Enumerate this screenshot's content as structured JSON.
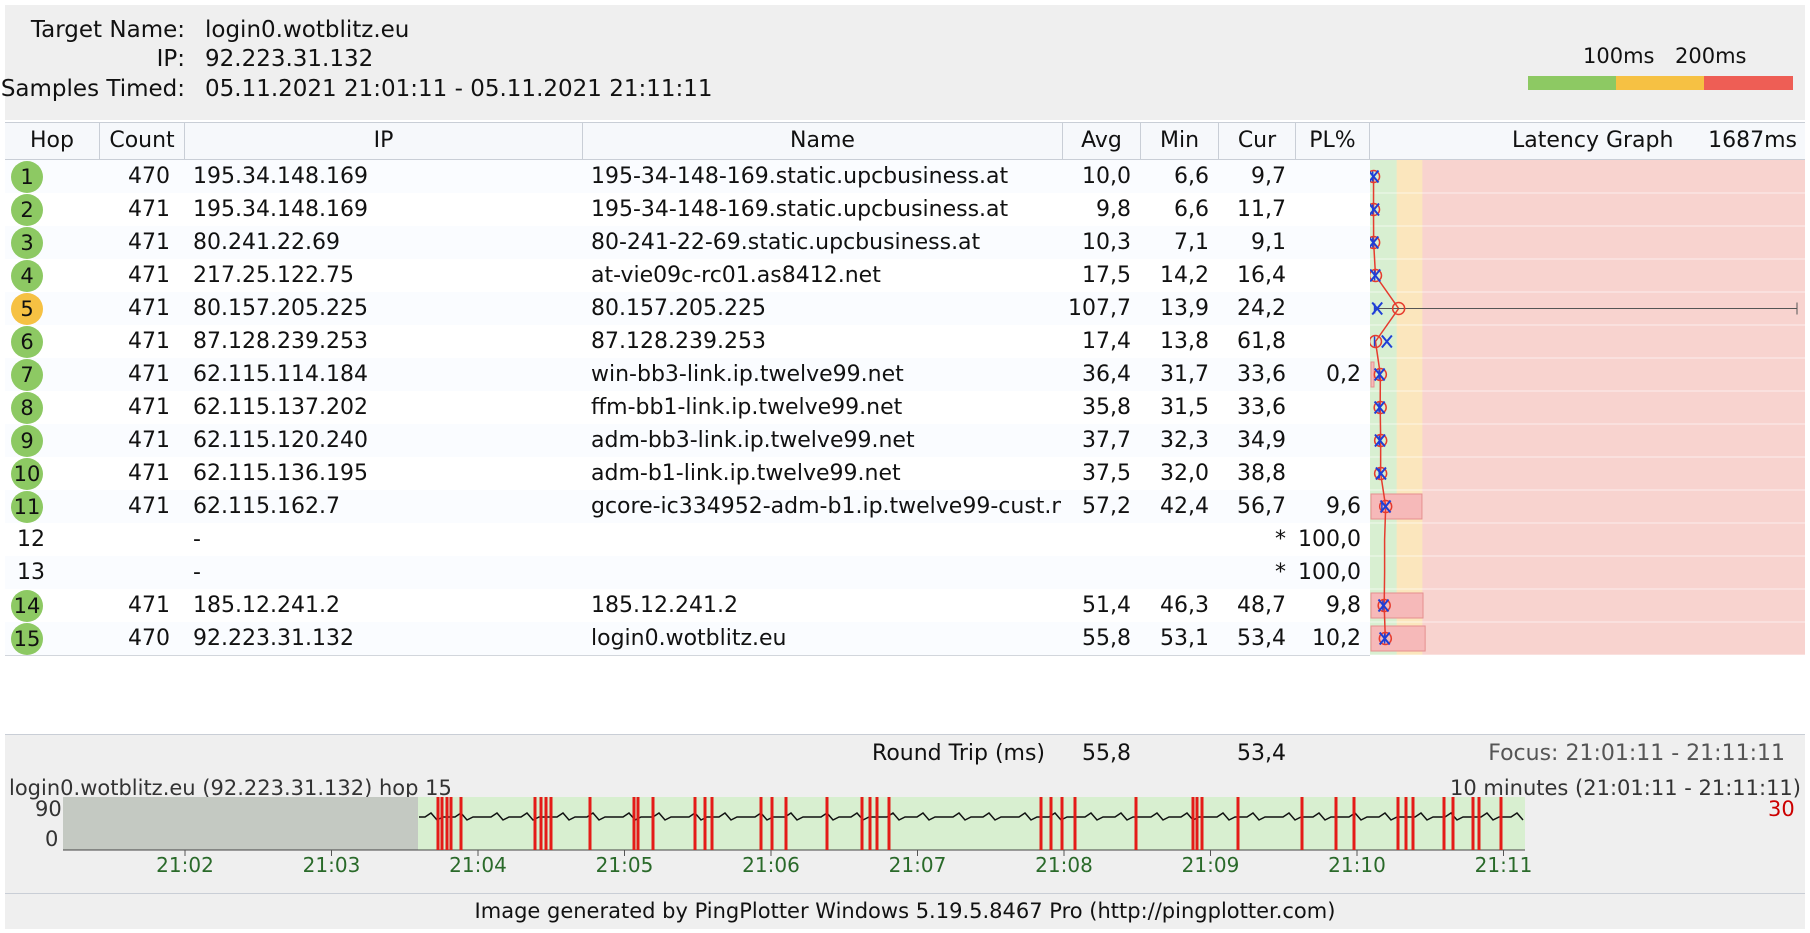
{
  "header": {
    "target_name_label": "Target Name:",
    "target_name": "login0.wotblitz.eu",
    "ip_label": "IP:",
    "ip": "92.223.31.132",
    "samples_label": "Samples Timed:",
    "samples": "05.11.2021 21:01:11 - 05.11.2021 21:11:11"
  },
  "scale": {
    "label_100": "100ms",
    "label_200": "200ms",
    "color_good": "#8dc963",
    "color_warn": "#f6c143",
    "color_bad": "#ee5e55"
  },
  "columns": {
    "hop": "Hop",
    "count": "Count",
    "ip": "IP",
    "name": "Name",
    "avg": "Avg",
    "min": "Min",
    "cur": "Cur",
    "pl": "PL%",
    "graph": "Latency Graph",
    "graph_max": "1687ms"
  },
  "hops": [
    {
      "hop": "1",
      "status": "good",
      "count": "470",
      "ip": "195.34.148.169",
      "name": "195-34-148-169.static.upcbusiness.at",
      "avg": "10,0",
      "min": "6,6",
      "cur": "9,7",
      "pl": "",
      "avg_ms": 10.0,
      "min_ms": 6.6,
      "cur_ms": 9.7,
      "pl_pct": 0
    },
    {
      "hop": "2",
      "status": "good",
      "count": "471",
      "ip": "195.34.148.169",
      "name": "195-34-148-169.static.upcbusiness.at",
      "avg": "9,8",
      "min": "6,6",
      "cur": "11,7",
      "pl": "",
      "avg_ms": 9.8,
      "min_ms": 6.6,
      "cur_ms": 11.7,
      "pl_pct": 0
    },
    {
      "hop": "3",
      "status": "good",
      "count": "471",
      "ip": "80.241.22.69",
      "name": "80-241-22-69.static.upcbusiness.at",
      "avg": "10,3",
      "min": "7,1",
      "cur": "9,1",
      "pl": "",
      "avg_ms": 10.3,
      "min_ms": 7.1,
      "cur_ms": 9.1,
      "pl_pct": 0
    },
    {
      "hop": "4",
      "status": "good",
      "count": "471",
      "ip": "217.25.122.75",
      "name": "at-vie09c-rc01.as8412.net",
      "avg": "17,5",
      "min": "14,2",
      "cur": "16,4",
      "pl": "",
      "avg_ms": 17.5,
      "min_ms": 14.2,
      "cur_ms": 16.4,
      "pl_pct": 0
    },
    {
      "hop": "5",
      "status": "warn",
      "count": "471",
      "ip": "80.157.205.225",
      "name": "80.157.205.225",
      "avg": "107,7",
      "min": "13,9",
      "cur": "24,2",
      "pl": "",
      "avg_ms": 107.7,
      "min_ms": 13.9,
      "cur_ms": 24.2,
      "pl_pct": 0,
      "max_ms": 1687
    },
    {
      "hop": "6",
      "status": "good",
      "count": "471",
      "ip": "87.128.239.253",
      "name": "87.128.239.253",
      "avg": "17,4",
      "min": "13,8",
      "cur": "61,8",
      "pl": "",
      "avg_ms": 17.4,
      "min_ms": 13.8,
      "cur_ms": 61.8,
      "pl_pct": 0
    },
    {
      "hop": "7",
      "status": "good",
      "count": "471",
      "ip": "62.115.114.184",
      "name": "win-bb3-link.ip.twelve99.net",
      "avg": "36,4",
      "min": "31,7",
      "cur": "33,6",
      "pl": "0,2",
      "avg_ms": 36.4,
      "min_ms": 31.7,
      "cur_ms": 33.6,
      "pl_pct": 0.2
    },
    {
      "hop": "8",
      "status": "good",
      "count": "471",
      "ip": "62.115.137.202",
      "name": "ffm-bb1-link.ip.twelve99.net",
      "avg": "35,8",
      "min": "31,5",
      "cur": "33,6",
      "pl": "",
      "avg_ms": 35.8,
      "min_ms": 31.5,
      "cur_ms": 33.6,
      "pl_pct": 0
    },
    {
      "hop": "9",
      "status": "good",
      "count": "471",
      "ip": "62.115.120.240",
      "name": "adm-bb3-link.ip.twelve99.net",
      "avg": "37,7",
      "min": "32,3",
      "cur": "34,9",
      "pl": "",
      "avg_ms": 37.7,
      "min_ms": 32.3,
      "cur_ms": 34.9,
      "pl_pct": 0
    },
    {
      "hop": "10",
      "status": "good",
      "count": "471",
      "ip": "62.115.136.195",
      "name": "adm-b1-link.ip.twelve99.net",
      "avg": "37,5",
      "min": "32,0",
      "cur": "38,8",
      "pl": "",
      "avg_ms": 37.5,
      "min_ms": 32.0,
      "cur_ms": 38.8,
      "pl_pct": 0
    },
    {
      "hop": "11",
      "status": "good",
      "count": "471",
      "ip": "62.115.162.7",
      "name": "gcore-ic334952-adm-b1.ip.twelve99-cust.n",
      "avg": "57,2",
      "min": "42,4",
      "cur": "56,7",
      "pl": "9,6",
      "avg_ms": 57.2,
      "min_ms": 42.4,
      "cur_ms": 56.7,
      "pl_pct": 9.6
    },
    {
      "hop": "12",
      "status": "none",
      "count": "",
      "ip": "-",
      "name": "",
      "avg": "",
      "min": "",
      "cur": "*",
      "pl": "100,0",
      "pl_pct": 100
    },
    {
      "hop": "13",
      "status": "none",
      "count": "",
      "ip": "-",
      "name": "",
      "avg": "",
      "min": "",
      "cur": "*",
      "pl": "100,0",
      "pl_pct": 100
    },
    {
      "hop": "14",
      "status": "good",
      "count": "471",
      "ip": "185.12.241.2",
      "name": "185.12.241.2",
      "avg": "51,4",
      "min": "46,3",
      "cur": "48,7",
      "pl": "9,8",
      "avg_ms": 51.4,
      "min_ms": 46.3,
      "cur_ms": 48.7,
      "pl_pct": 9.8
    },
    {
      "hop": "15",
      "status": "good",
      "count": "470",
      "ip": "92.223.31.132",
      "name": "login0.wotblitz.eu",
      "avg": "55,8",
      "min": "53,1",
      "cur": "53,4",
      "pl": "10,2",
      "avg_ms": 55.8,
      "min_ms": 53.1,
      "cur_ms": 53.4,
      "pl_pct": 10.2
    }
  ],
  "roundtrip": {
    "label": "Round Trip (ms)",
    "avg": "55,8",
    "cur": "53,4",
    "focus": "Focus: 21:01:11 - 21:11:11"
  },
  "timeline": {
    "title": "login0.wotblitz.eu (92.223.31.132) hop 15",
    "range": "10 minutes (21:01:11 - 21:11:11)",
    "y_top": "90",
    "y_bottom": "0",
    "right_value": "30",
    "ticks": [
      "21:02",
      "21:03",
      "21:04",
      "21:05",
      "21:06",
      "21:07",
      "21:08",
      "21:09",
      "21:10",
      "21:11"
    ]
  },
  "footer": {
    "text": "Image generated by PingPlotter Windows 5.19.5.8467 Pro (http://pingplotter.com)"
  },
  "colors": {
    "good": "#8dc963",
    "warn": "#f6c143",
    "bad_zone": "#f9cfcc",
    "loss_bar": "#f7c3c3",
    "mid_zone": "#fbe7bf",
    "low_zone": "#d9efd2",
    "timeline_green": "#d8efd0"
  }
}
